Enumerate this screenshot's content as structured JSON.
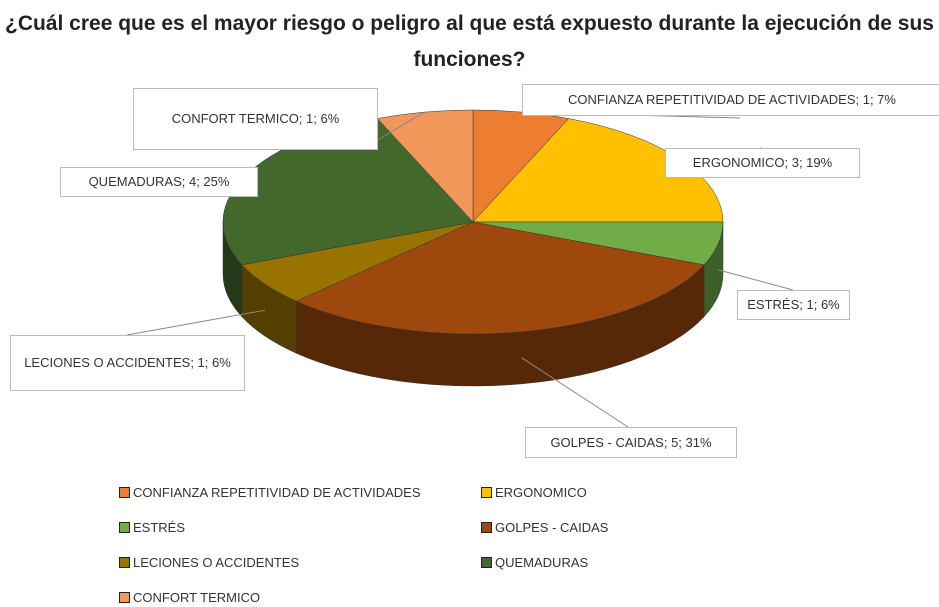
{
  "chart_data": {
    "type": "pie3d",
    "title": "¿Cuál cree que es el mayor riesgo o peligro al que está expuesto durante la ejecución de sus funciones?",
    "categories": [
      "CONFIANZA REPETITIVIDAD DE ACTIVIDADES",
      "ERGONOMICO",
      "ESTRÉS",
      "GOLPES - CAIDAS",
      "LECIONES O ACCIDENTES",
      "QUEMADURAS",
      "CONFORT TERMICO"
    ],
    "values": [
      1,
      3,
      1,
      5,
      1,
      4,
      1
    ],
    "value_labels": [
      "CONFIANZA REPETITIVIDAD DE ACTIVIDADES; 1; 7%",
      "ERGONOMICO; 3; 19%",
      "ESTRÉS; 1; 6%",
      "GOLPES - CAIDAS; 5; 31%",
      "LECIONES O ACCIDENTES; 1; 6%",
      "QUEMADURAS; 4; 25%",
      "CONFORT TERMICO; 1; 6%"
    ],
    "colors": [
      "#ed7d31",
      "#ffc000",
      "#70ad47",
      "#9e480e",
      "#997300",
      "#43682b",
      "#f1975a"
    ],
    "legend": "bottom"
  }
}
